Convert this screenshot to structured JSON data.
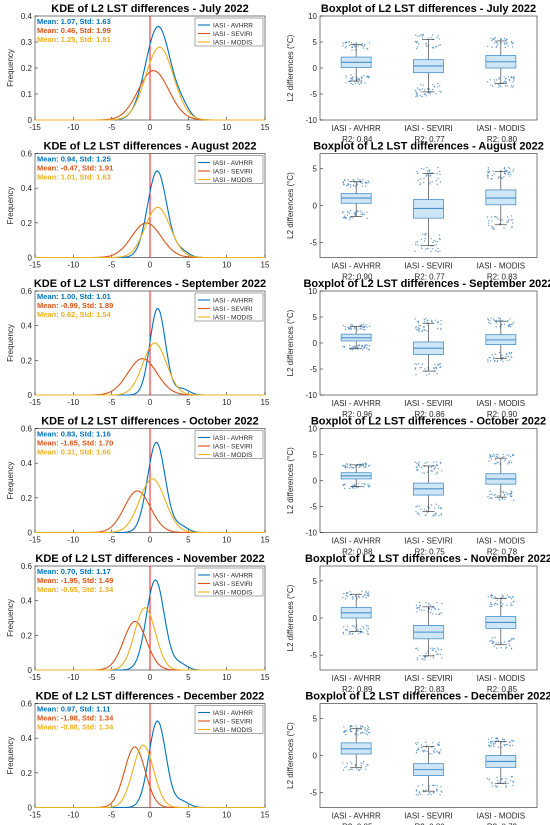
{
  "colors": {
    "avhrr": "#0072BD",
    "seviri": "#D95319",
    "modis": "#EDB120",
    "zero_line": "#FF0000",
    "box_fill": "#CFE6F7",
    "box_edge": "#4A90C8",
    "points": "#3A7FBF"
  },
  "chart_data": [
    {
      "type": "line",
      "panel": "kde",
      "row": 0,
      "title": "KDE of L2 LST differences - July 2022",
      "ylabel": "Frequency",
      "xlim": [
        -15,
        15
      ],
      "ylim": [
        0,
        0.4
      ],
      "xticks": [
        "-15",
        "-10",
        "-5",
        "0",
        "5",
        "10",
        "15"
      ],
      "yticks": [
        "0",
        "0.1",
        "0.2",
        "0.3",
        "0.4"
      ],
      "stats": [
        "Mean: 1.07, Std: 1.63",
        "Mean: 0.46, Std: 1.99",
        "Mean: 1.25, Std: 1.81"
      ],
      "series": [
        {
          "name": "IASI - AVHRR",
          "mean": 1.07,
          "std": 1.63,
          "peak": 0.36
        },
        {
          "name": "IASI - SEVIRI",
          "mean": 0.46,
          "std": 1.99,
          "peak": 0.19
        },
        {
          "name": "IASI - MODIS",
          "mean": 1.25,
          "std": 1.81,
          "peak": 0.28
        }
      ]
    },
    {
      "type": "box",
      "panel": "box",
      "row": 0,
      "title": "Boxplot of L2 LST differences - July 2022",
      "ylabel": "L2 differences (°C)",
      "ylim": [
        -10,
        10
      ],
      "yticks": [
        "-10",
        "-5",
        "0",
        "5",
        "10"
      ],
      "categories": [
        "IASI - AVHRR",
        "IASI - SEVIRI",
        "IASI - MODIS"
      ],
      "r2": [
        "R2: 0.84",
        "R2: 0.77",
        "R2: 0.80"
      ],
      "boxes": [
        {
          "q1": 0.1,
          "median": 1.1,
          "q3": 2.1,
          "whislo": -2.5,
          "whishi": 4.5
        },
        {
          "q1": -0.9,
          "median": 0.4,
          "q3": 1.6,
          "whislo": -4.6,
          "whishi": 5.5
        },
        {
          "q1": 0.0,
          "median": 1.2,
          "q3": 2.4,
          "whislo": -3.0,
          "whishi": 5.2
        }
      ]
    },
    {
      "type": "line",
      "panel": "kde",
      "row": 1,
      "title": "KDE of L2 LST differences - August 2022",
      "ylabel": "Frequency",
      "xlim": [
        -15,
        15
      ],
      "ylim": [
        0,
        0.6
      ],
      "xticks": [
        "-15",
        "-10",
        "-5",
        "0",
        "5",
        "10",
        "15"
      ],
      "yticks": [
        "0",
        "0.2",
        "0.4",
        "0.6"
      ],
      "stats": [
        "Mean: 0.94, Std: 1.25",
        "Mean: -0.47, Std: 1.91",
        "Mean: 1.01, Std: 1.63"
      ],
      "series": [
        {
          "name": "IASI - AVHRR",
          "mean": 0.94,
          "std": 1.25,
          "peak": 0.5
        },
        {
          "name": "IASI - SEVIRI",
          "mean": -0.47,
          "std": 1.91,
          "peak": 0.2
        },
        {
          "name": "IASI - MODIS",
          "mean": 1.01,
          "std": 1.63,
          "peak": 0.29
        }
      ]
    },
    {
      "type": "box",
      "panel": "box",
      "row": 1,
      "title": "Boxplot of L2 LST differences - August 2022",
      "ylabel": "L2 differences (°C)",
      "ylim": [
        -7,
        7
      ],
      "yticks": [
        "-5",
        "0",
        "5"
      ],
      "categories": [
        "IASI - AVHRR",
        "IASI - SEVIRI",
        "IASI - MODIS"
      ],
      "r2": [
        "R2: 0.90",
        "R2: 0.77",
        "R2: 0.83"
      ],
      "boxes": [
        {
          "q1": 0.3,
          "median": 1.0,
          "q3": 1.6,
          "whislo": -1.5,
          "whishi": 3.2
        },
        {
          "q1": -1.7,
          "median": -0.4,
          "q3": 0.8,
          "whislo": -5.4,
          "whishi": 4.3
        },
        {
          "q1": 0.1,
          "median": 1.0,
          "q3": 2.1,
          "whislo": -2.6,
          "whishi": 4.6
        }
      ]
    },
    {
      "type": "line",
      "panel": "kde",
      "row": 2,
      "title": "KDE of L2 LST differences - September 2022",
      "ylabel": "Frequency",
      "xlim": [
        -15,
        15
      ],
      "ylim": [
        0,
        0.6
      ],
      "xticks": [
        "-15",
        "-10",
        "-5",
        "0",
        "5",
        "10",
        "15"
      ],
      "yticks": [
        "0",
        "0.2",
        "0.4",
        "0.6"
      ],
      "stats": [
        "Mean: 1.00, Std: 1.01",
        "Mean: -0.99, Std: 1.89",
        "Mean: 0.62, Std: 1.54"
      ],
      "series": [
        {
          "name": "IASI - AVHRR",
          "mean": 1.0,
          "std": 1.01,
          "peak": 0.5
        },
        {
          "name": "IASI - SEVIRI",
          "mean": -0.99,
          "std": 1.89,
          "peak": 0.21
        },
        {
          "name": "IASI - MODIS",
          "mean": 0.62,
          "std": 1.54,
          "peak": 0.3
        }
      ]
    },
    {
      "type": "box",
      "panel": "box",
      "row": 2,
      "title": "Boxplot of L2 LST differences - September 2022",
      "ylabel": "L2 differences (°C)",
      "ylim": [
        -10,
        10
      ],
      "yticks": [
        "-10",
        "-5",
        "0",
        "5",
        "10"
      ],
      "categories": [
        "IASI - AVHRR",
        "IASI - SEVIRI",
        "IASI - MODIS"
      ],
      "r2": [
        "R2: 0.96",
        "R2: 0.86",
        "R2: 0.90"
      ],
      "boxes": [
        {
          "q1": 0.4,
          "median": 1.0,
          "q3": 1.7,
          "whislo": -1.0,
          "whishi": 3.2
        },
        {
          "q1": -2.2,
          "median": -1.0,
          "q3": 0.2,
          "whislo": -5.4,
          "whishi": 3.8
        },
        {
          "q1": -0.3,
          "median": 0.6,
          "q3": 1.6,
          "whislo": -3.0,
          "whishi": 4.2
        }
      ]
    },
    {
      "type": "line",
      "panel": "kde",
      "row": 3,
      "title": "KDE of L2 LST differences - October 2022",
      "ylabel": "Frequency",
      "xlim": [
        -15,
        15
      ],
      "ylim": [
        0,
        0.6
      ],
      "xticks": [
        "-15",
        "-10",
        "-5",
        "0",
        "5",
        "10",
        "15"
      ],
      "yticks": [
        "0",
        "0.2",
        "0.4",
        "0.6"
      ],
      "stats": [
        "Mean: 0.83, Std: 1.16",
        "Mean: -1.65, Std: 1.70",
        "Mean: 0.31, Std: 1.66"
      ],
      "series": [
        {
          "name": "IASI - AVHRR",
          "mean": 0.83,
          "std": 1.16,
          "peak": 0.52
        },
        {
          "name": "IASI - SEVIRI",
          "mean": -1.65,
          "std": 1.7,
          "peak": 0.24
        },
        {
          "name": "IASI - MODIS",
          "mean": 0.31,
          "std": 1.66,
          "peak": 0.31
        }
      ]
    },
    {
      "type": "box",
      "panel": "box",
      "row": 3,
      "title": "Boxplot of L2 LST differences - October 2022",
      "ylabel": "L2 differences (°C)",
      "ylim": [
        -10,
        10
      ],
      "yticks": [
        "-10",
        "-5",
        "0",
        "5",
        "10"
      ],
      "categories": [
        "IASI - AVHRR",
        "IASI - SEVIRI",
        "IASI - MODIS"
      ],
      "r2": [
        "R2: 0.88",
        "R2: 0.75",
        "R2: 0.78"
      ],
      "boxes": [
        {
          "q1": 0.3,
          "median": 0.9,
          "q3": 1.5,
          "whislo": -1.2,
          "whishi": 3.0
        },
        {
          "q1": -2.8,
          "median": -1.6,
          "q3": -0.5,
          "whislo": -6.0,
          "whishi": 2.8
        },
        {
          "q1": -0.7,
          "median": 0.3,
          "q3": 1.3,
          "whislo": -3.2,
          "whishi": 4.3
        }
      ]
    },
    {
      "type": "line",
      "panel": "kde",
      "row": 4,
      "title": "KDE of L2 LST differences - November 2022",
      "ylabel": "Frequency",
      "xlim": [
        -15,
        15
      ],
      "ylim": [
        0,
        0.6
      ],
      "xticks": [
        "-15",
        "-10",
        "-5",
        "0",
        "5",
        "10",
        "15"
      ],
      "yticks": [
        "0",
        "0.2",
        "0.4",
        "0.6"
      ],
      "stats": [
        "Mean: 0.70, Std: 1.17",
        "Mean: -1.95, Std: 1.49",
        "Mean: -0.65, Std: 1.34"
      ],
      "series": [
        {
          "name": "IASI - AVHRR",
          "mean": 0.7,
          "std": 1.17,
          "peak": 0.52
        },
        {
          "name": "IASI - SEVIRI",
          "mean": -1.95,
          "std": 1.49,
          "peak": 0.28
        },
        {
          "name": "IASI - MODIS",
          "mean": -0.65,
          "std": 1.34,
          "peak": 0.36
        }
      ]
    },
    {
      "type": "box",
      "panel": "box",
      "row": 4,
      "title": "Boxplot of L2 LST differences - November 2022",
      "ylabel": "L2 differences (°C)",
      "ylim": [
        -7,
        7
      ],
      "yticks": [
        "-5",
        "0",
        "5"
      ],
      "categories": [
        "IASI - AVHRR",
        "IASI - SEVIRI",
        "IASI - MODIS"
      ],
      "r2": [
        "R2: 0.89",
        "R2: 0.83",
        "R2: 0.85"
      ],
      "boxes": [
        {
          "q1": 0.0,
          "median": 0.7,
          "q3": 1.4,
          "whislo": -1.8,
          "whishi": 3.2
        },
        {
          "q1": -2.8,
          "median": -1.9,
          "q3": -1.0,
          "whislo": -5.1,
          "whishi": 1.5
        },
        {
          "q1": -1.4,
          "median": -0.6,
          "q3": 0.2,
          "whislo": -3.6,
          "whishi": 2.6
        }
      ]
    },
    {
      "type": "line",
      "panel": "kde",
      "row": 5,
      "title": "KDE of L2 LST differences - December 2022",
      "ylabel": "Frequency",
      "xlim": [
        -15,
        15
      ],
      "ylim": [
        0,
        0.6
      ],
      "xticks": [
        "-15",
        "-10",
        "-5",
        "0",
        "5",
        "10",
        "15"
      ],
      "yticks": [
        "0",
        "0.2",
        "0.4",
        "0.6"
      ],
      "stats": [
        "Mean: 0.97, Std: 1.11",
        "Mean: -1.98, Std: 1.34",
        "Mean: -0.88, Std: 1.34"
      ],
      "series": [
        {
          "name": "IASI - AVHRR",
          "mean": 0.97,
          "std": 1.11,
          "peak": 0.5
        },
        {
          "name": "IASI - SEVIRI",
          "mean": -1.98,
          "std": 1.34,
          "peak": 0.35
        },
        {
          "name": "IASI - MODIS",
          "mean": -0.88,
          "std": 1.34,
          "peak": 0.36
        }
      ]
    },
    {
      "type": "box",
      "panel": "box",
      "row": 5,
      "title": "Boxplot of L2 LST differences - December 2022",
      "ylabel": "L2 differences (°C)",
      "ylim": [
        -7,
        7
      ],
      "yticks": [
        "-5",
        "0",
        "5"
      ],
      "categories": [
        "IASI - AVHRR",
        "IASI - SEVIRI",
        "IASI - MODIS"
      ],
      "r2": [
        "R2: 0.85",
        "R2: 0.80",
        "R2: 0.79"
      ],
      "boxes": [
        {
          "q1": 0.2,
          "median": 0.9,
          "q3": 1.7,
          "whislo": -1.6,
          "whishi": 3.6
        },
        {
          "q1": -2.7,
          "median": -1.9,
          "q3": -1.1,
          "whislo": -4.8,
          "whishi": 1.2
        },
        {
          "q1": -1.6,
          "median": -0.8,
          "q3": 0.0,
          "whislo": -3.8,
          "whishi": 1.9
        }
      ]
    }
  ]
}
